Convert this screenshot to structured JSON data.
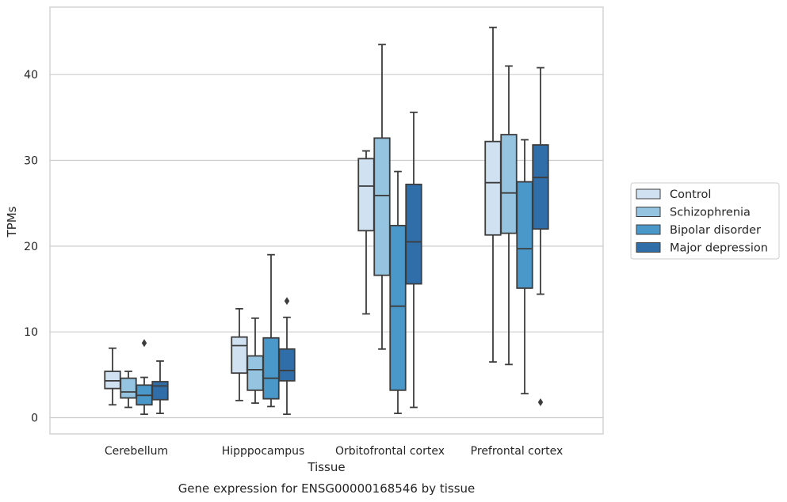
{
  "chart_data": {
    "type": "box",
    "caption": "Gene expression for ENSG00000168546 by tissue",
    "xlabel": "Tissue",
    "ylabel": "TPMs",
    "ylim": [
      -1.8,
      47.5
    ],
    "yticks": [
      0,
      10,
      20,
      30,
      40
    ],
    "grid": true,
    "legend_position": "right",
    "categories": [
      "Cerebellum",
      "Hipppocampus",
      "Orbitofrontal cortex",
      "Prefrontal cortex"
    ],
    "series": [
      {
        "name": "Control",
        "color": "#d0e1f2",
        "boxes": [
          {
            "whislo": 1.5,
            "q1": 3.4,
            "med": 4.3,
            "q3": 5.4,
            "whishi": 8.1,
            "fliers": []
          },
          {
            "whislo": 2.0,
            "q1": 5.2,
            "med": 8.4,
            "q3": 9.4,
            "whishi": 12.7,
            "fliers": []
          },
          {
            "whislo": 12.1,
            "q1": 21.8,
            "med": 27.0,
            "q3": 30.2,
            "whishi": 31.1,
            "fliers": []
          },
          {
            "whislo": 6.5,
            "q1": 21.3,
            "med": 27.4,
            "q3": 32.2,
            "whishi": 45.5,
            "fliers": []
          }
        ]
      },
      {
        "name": "Schizophrenia",
        "color": "#94c4df",
        "boxes": [
          {
            "whislo": 1.2,
            "q1": 2.3,
            "med": 3.0,
            "q3": 4.6,
            "whishi": 5.4,
            "fliers": []
          },
          {
            "whislo": 1.7,
            "q1": 3.2,
            "med": 5.6,
            "q3": 7.2,
            "whishi": 11.6,
            "fliers": []
          },
          {
            "whislo": 8.0,
            "q1": 16.6,
            "med": 25.9,
            "q3": 32.6,
            "whishi": 43.5,
            "fliers": []
          },
          {
            "whislo": 6.2,
            "q1": 21.5,
            "med": 26.2,
            "q3": 33.0,
            "whishi": 41.0,
            "fliers": []
          }
        ]
      },
      {
        "name": "Bipolar disorder",
        "color": "#4a98c9",
        "boxes": [
          {
            "whislo": 0.4,
            "q1": 1.5,
            "med": 2.6,
            "q3": 3.8,
            "whishi": 4.7,
            "fliers": [
              8.7
            ]
          },
          {
            "whislo": 1.3,
            "q1": 2.2,
            "med": 4.6,
            "q3": 9.3,
            "whishi": 19.0,
            "fliers": []
          },
          {
            "whislo": 0.5,
            "q1": 3.2,
            "med": 13.0,
            "q3": 22.4,
            "whishi": 28.7,
            "fliers": []
          },
          {
            "whislo": 2.8,
            "q1": 15.1,
            "med": 19.7,
            "q3": 27.5,
            "whishi": 32.4,
            "fliers": []
          }
        ]
      },
      {
        "name": "Major depression",
        "color": "#2f6ea9",
        "boxes": [
          {
            "whislo": 0.5,
            "q1": 2.1,
            "med": 3.7,
            "q3": 4.2,
            "whishi": 6.6,
            "fliers": []
          },
          {
            "whislo": 0.4,
            "q1": 4.3,
            "med": 5.5,
            "q3": 8.0,
            "whishi": 11.7,
            "fliers": [
              13.6
            ]
          },
          {
            "whislo": 1.2,
            "q1": 15.6,
            "med": 20.5,
            "q3": 27.2,
            "whishi": 35.6,
            "fliers": []
          },
          {
            "whislo": 14.4,
            "q1": 22.0,
            "med": 28.0,
            "q3": 31.8,
            "whishi": 40.8,
            "fliers": [
              1.8
            ]
          }
        ]
      }
    ]
  }
}
